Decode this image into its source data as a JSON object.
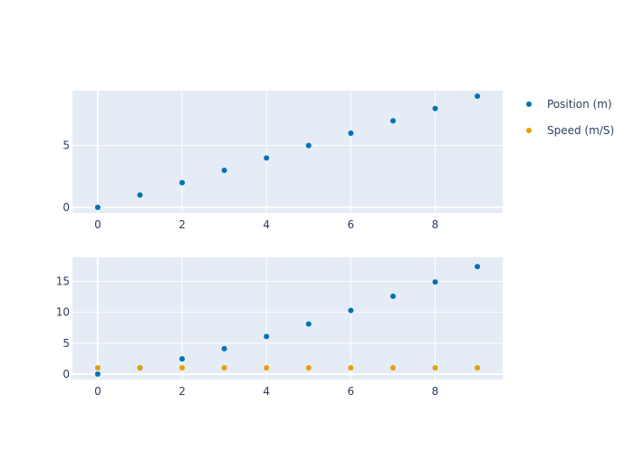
{
  "chart_data": [
    {
      "type": "scatter",
      "title": "",
      "xlabel": "",
      "ylabel": "",
      "x": [
        0,
        1,
        2,
        3,
        4,
        5,
        6,
        7,
        8,
        9
      ],
      "xlim": [
        -0.6,
        9.6
      ],
      "ylim": [
        -0.45,
        9.45
      ],
      "xticks": [
        0,
        2,
        4,
        6,
        8
      ],
      "yticks": [
        0,
        5
      ],
      "grid": true,
      "series": [
        {
          "name": "Position (m)",
          "color": "#0072B2",
          "values": [
            0,
            1,
            2,
            3,
            4,
            5,
            6,
            7,
            8,
            9
          ]
        }
      ]
    },
    {
      "type": "scatter",
      "title": "",
      "xlabel": "",
      "ylabel": "",
      "x": [
        0,
        1,
        2,
        3,
        4,
        5,
        6,
        7,
        8,
        9
      ],
      "xlim": [
        -0.6,
        9.6
      ],
      "ylim": [
        -0.9,
        18.9
      ],
      "xticks": [
        0,
        2,
        4,
        6,
        8
      ],
      "yticks": [
        0,
        5,
        10,
        15
      ],
      "grid": true,
      "series": [
        {
          "name": "Position (m)",
          "color": "#0072B2",
          "values": [
            0,
            1,
            2.46,
            4.1,
            6.08,
            8.1,
            10.3,
            12.6,
            14.9,
            17.4
          ]
        },
        {
          "name": "Speed (m/S)",
          "color": "#E69F00",
          "values": [
            1,
            1,
            1,
            1,
            1,
            1,
            1,
            1,
            1,
            1
          ]
        }
      ]
    }
  ],
  "legend": {
    "placement": "top-right",
    "items": [
      {
        "label": "Position (m)",
        "color": "#0072B2"
      },
      {
        "label": "Speed (m/S)",
        "color": "#E69F00"
      }
    ]
  },
  "style": {
    "plot_background": "#E5ECF6",
    "grid_color": "#ffffff",
    "text_color": "#2a3f5f"
  }
}
